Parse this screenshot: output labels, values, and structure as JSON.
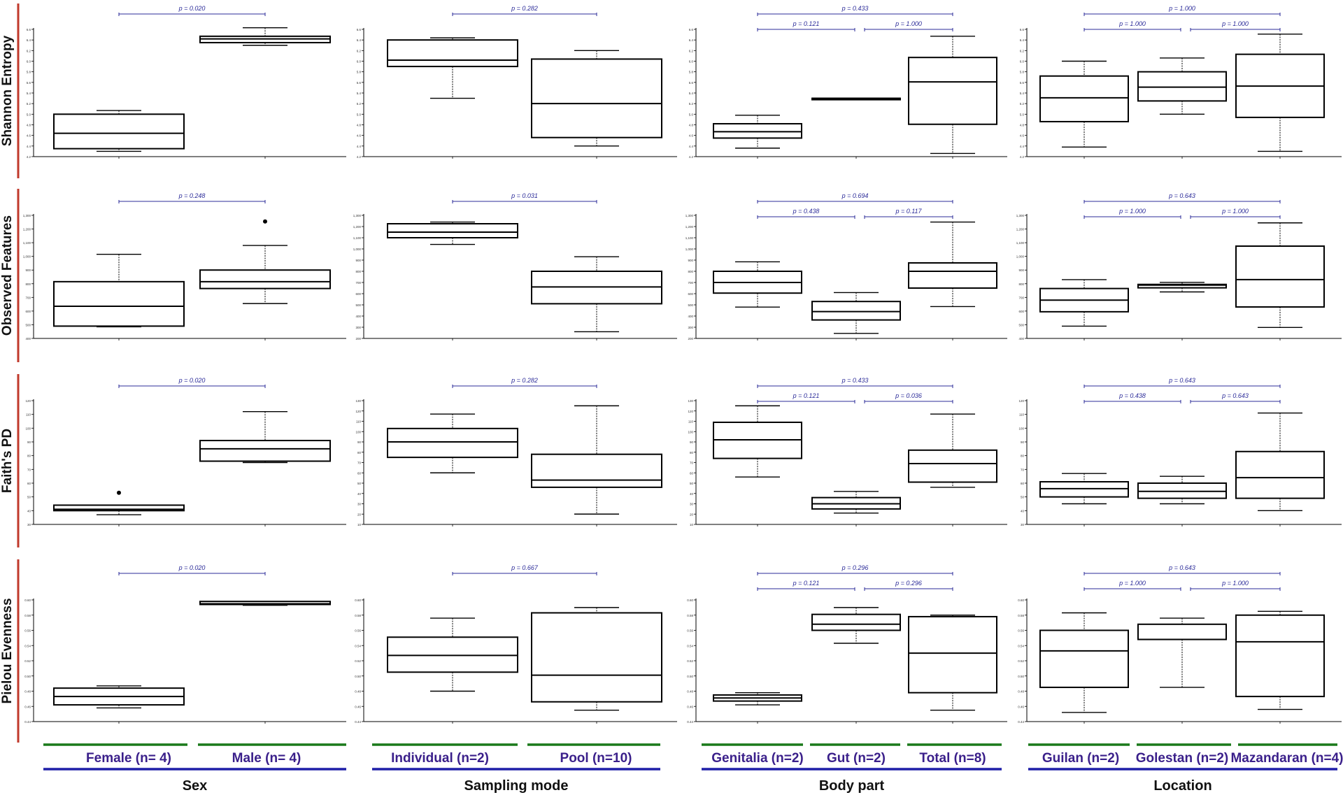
{
  "colors": {
    "row_bar": "#c0392b",
    "group_underline": "#1a7a1a",
    "factor_underline": "#1f1fa8",
    "group_label": "#3a1f8a",
    "pvalue": "#2b2b99",
    "box": "#000000"
  },
  "row_labels": [
    "Shannon Entropy",
    "Observed Features",
    "Faith's PD",
    "Pielou Evenness"
  ],
  "factors": [
    {
      "label": "Sex",
      "groups": [
        "Female (n= 4)",
        "Male (n= 4)"
      ]
    },
    {
      "label": "Sampling mode",
      "groups": [
        "Individual (n=2)",
        "Pool (n=10)"
      ]
    },
    {
      "label": "Body part",
      "groups": [
        "Genitalia (n=2)",
        "Gut (n=2)",
        "Total (n=8)"
      ]
    },
    {
      "label": "Location",
      "groups": [
        "Guilan (n=2)",
        "Golestan (n=2)",
        "Mazandaran (n=4)"
      ]
    }
  ],
  "chart_data": [
    {
      "type": "box",
      "metric": "Shannon Entropy",
      "factor": "Sex",
      "ylim": [
        4.2,
        6.6
      ],
      "yticks": [
        "4.2",
        "4.4",
        "4.6",
        "4.8",
        "5.0",
        "5.2",
        "5.4",
        "5.6",
        "5.8",
        "6.0",
        "6.2",
        "6.4",
        "6.6"
      ],
      "categories": [
        "Female (n= 4)",
        "Male (n= 4)"
      ],
      "boxes": [
        {
          "min": 4.3,
          "q1": 4.35,
          "median": 4.64,
          "q3": 5.0,
          "max": 5.07
        },
        {
          "min": 6.3,
          "q1": 6.35,
          "median": 6.42,
          "q3": 6.47,
          "max": 6.63
        }
      ],
      "comparisons": [
        {
          "a": 0,
          "b": 1,
          "p": "p = 0.020",
          "level": 0
        }
      ]
    },
    {
      "type": "box",
      "metric": "Shannon Entropy",
      "factor": "Sampling mode",
      "ylim": [
        4.2,
        6.6
      ],
      "yticks": [
        "4.2",
        "4.4",
        "4.6",
        "4.8",
        "5.0",
        "5.2",
        "5.4",
        "5.6",
        "5.8",
        "6.0",
        "6.2",
        "6.4",
        "6.6"
      ],
      "categories": [
        "Individual (n=2)",
        "Pool (n=10)"
      ],
      "boxes": [
        {
          "min": 5.3,
          "q1": 5.9,
          "median": 6.02,
          "q3": 6.4,
          "max": 6.44
        },
        {
          "min": 4.4,
          "q1": 4.56,
          "median": 5.2,
          "q3": 6.04,
          "max": 6.2
        }
      ],
      "comparisons": [
        {
          "a": 0,
          "b": 1,
          "p": "p = 0.282",
          "level": 0
        }
      ]
    },
    {
      "type": "box",
      "metric": "Shannon Entropy",
      "factor": "Body part",
      "ylim": [
        4.2,
        6.6
      ],
      "yticks": [
        "4.2",
        "4.4",
        "4.6",
        "4.8",
        "5.0",
        "5.2",
        "5.4",
        "5.6",
        "5.8",
        "6.0",
        "6.2",
        "6.4",
        "6.6"
      ],
      "categories": [
        "Genitalia (n=2)",
        "Gut (n=2)",
        "Total (n=8)"
      ],
      "boxes": [
        {
          "min": 4.36,
          "q1": 4.55,
          "median": 4.67,
          "q3": 4.82,
          "max": 4.98
        },
        {
          "min": 5.3,
          "q1": 5.3,
          "median": 5.3,
          "q3": 5.3,
          "max": 5.3
        },
        {
          "min": 4.26,
          "q1": 4.81,
          "median": 5.61,
          "q3": 6.07,
          "max": 6.47
        }
      ],
      "comparisons": [
        {
          "a": 0,
          "b": 1,
          "p": "p = 0.121",
          "level": 0
        },
        {
          "a": 1,
          "b": 2,
          "p": "p = 1.000",
          "level": 0
        },
        {
          "a": 0,
          "b": 2,
          "p": "p = 0.433",
          "level": 1
        }
      ]
    },
    {
      "type": "box",
      "metric": "Shannon Entropy",
      "factor": "Location",
      "ylim": [
        4.2,
        6.6
      ],
      "yticks": [
        "4.2",
        "4.4",
        "4.6",
        "4.8",
        "5.0",
        "5.2",
        "5.4",
        "5.6",
        "5.8",
        "6.0",
        "6.2",
        "6.4",
        "6.6"
      ],
      "categories": [
        "Guilan (n=2)",
        "Golestan (n=2)",
        "Mazandaran (n=4)"
      ],
      "boxes": [
        {
          "min": 4.38,
          "q1": 4.86,
          "median": 5.31,
          "q3": 5.72,
          "max": 6.0
        },
        {
          "min": 5.0,
          "q1": 5.25,
          "median": 5.51,
          "q3": 5.8,
          "max": 6.06
        },
        {
          "min": 4.3,
          "q1": 4.94,
          "median": 5.53,
          "q3": 6.13,
          "max": 6.51
        }
      ],
      "comparisons": [
        {
          "a": 0,
          "b": 1,
          "p": "p = 1.000",
          "level": 0
        },
        {
          "a": 1,
          "b": 2,
          "p": "p = 1.000",
          "level": 0
        },
        {
          "a": 0,
          "b": 2,
          "p": "p = 1.000",
          "level": 1
        }
      ]
    },
    {
      "type": "box",
      "metric": "Observed Features",
      "factor": "Sex",
      "ylim": [
        400,
        1300
      ],
      "yticks": [
        "400",
        "500",
        "600",
        "700",
        "800",
        "900",
        "1,000",
        "1,100",
        "1,200",
        "1,300"
      ],
      "categories": [
        "Female (n= 4)",
        "Male (n= 4)"
      ],
      "boxes": [
        {
          "min": 485,
          "q1": 490,
          "median": 635,
          "q3": 815,
          "max": 1015
        },
        {
          "min": 655,
          "q1": 765,
          "median": 815,
          "q3": 900,
          "max": 1080,
          "outliers": [
            1255
          ]
        }
      ],
      "comparisons": [
        {
          "a": 0,
          "b": 1,
          "p": "p = 0.248",
          "level": 0
        }
      ]
    },
    {
      "type": "box",
      "metric": "Observed Features",
      "factor": "Sampling mode",
      "ylim": [
        200,
        1300
      ],
      "yticks": [
        "200",
        "300",
        "400",
        "500",
        "600",
        "700",
        "800",
        "900",
        "1,000",
        "1,100",
        "1,200",
        "1,300"
      ],
      "categories": [
        "Individual (n=2)",
        "Pool (n=10)"
      ],
      "boxes": [
        {
          "min": 1040,
          "q1": 1100,
          "median": 1150,
          "q3": 1225,
          "max": 1240
        },
        {
          "min": 260,
          "q1": 510,
          "median": 660,
          "q3": 800,
          "max": 930
        }
      ],
      "comparisons": [
        {
          "a": 0,
          "b": 1,
          "p": "p = 0.031",
          "level": 0
        }
      ]
    },
    {
      "type": "box",
      "metric": "Observed Features",
      "factor": "Body part",
      "ylim": [
        200,
        1300
      ],
      "yticks": [
        "200",
        "300",
        "400",
        "500",
        "600",
        "700",
        "800",
        "900",
        "1,000",
        "1,100",
        "1,200",
        "1,300"
      ],
      "categories": [
        "Genitalia (n=2)",
        "Gut (n=2)",
        "Total (n=8)"
      ],
      "boxes": [
        {
          "min": 480,
          "q1": 605,
          "median": 700,
          "q3": 800,
          "max": 885
        },
        {
          "min": 245,
          "q1": 365,
          "median": 440,
          "q3": 530,
          "max": 610
        },
        {
          "min": 485,
          "q1": 650,
          "median": 800,
          "q3": 875,
          "max": 1240
        }
      ],
      "comparisons": [
        {
          "a": 0,
          "b": 1,
          "p": "p = 0.438",
          "level": 0
        },
        {
          "a": 1,
          "b": 2,
          "p": "p = 0.117",
          "level": 0
        },
        {
          "a": 0,
          "b": 2,
          "p": "p = 0.694",
          "level": 1
        }
      ]
    },
    {
      "type": "box",
      "metric": "Observed Features",
      "factor": "Location",
      "ylim": [
        400,
        1300
      ],
      "yticks": [
        "400",
        "500",
        "600",
        "700",
        "800",
        "900",
        "1,000",
        "1,100",
        "1,200",
        "1,300"
      ],
      "categories": [
        "Guilan (n=2)",
        "Golestan (n=2)",
        "Mazandaran (n=4)"
      ],
      "boxes": [
        {
          "min": 490,
          "q1": 595,
          "median": 680,
          "q3": 765,
          "max": 830
        },
        {
          "min": 740,
          "q1": 770,
          "median": 790,
          "q3": 795,
          "max": 810
        },
        {
          "min": 480,
          "q1": 630,
          "median": 830,
          "q3": 1075,
          "max": 1245
        }
      ],
      "comparisons": [
        {
          "a": 0,
          "b": 1,
          "p": "p = 1.000",
          "level": 0
        },
        {
          "a": 1,
          "b": 2,
          "p": "p = 1.000",
          "level": 0
        },
        {
          "a": 0,
          "b": 2,
          "p": "p = 0.643",
          "level": 1
        }
      ]
    },
    {
      "type": "box",
      "metric": "Faith's PD",
      "factor": "Sex",
      "ylim": [
        30,
        120
      ],
      "yticks": [
        "30",
        "40",
        "50",
        "60",
        "70",
        "80",
        "90",
        "100",
        "110",
        "120"
      ],
      "categories": [
        "Female (n= 4)",
        "Male (n= 4)"
      ],
      "boxes": [
        {
          "min": 37,
          "q1": 40,
          "median": 41,
          "q3": 44,
          "max": 44,
          "outliers": [
            53
          ]
        },
        {
          "min": 75,
          "q1": 76,
          "median": 85,
          "q3": 91,
          "max": 112
        }
      ],
      "comparisons": [
        {
          "a": 0,
          "b": 1,
          "p": "p = 0.020",
          "level": 0
        }
      ]
    },
    {
      "type": "box",
      "metric": "Faith's PD",
      "factor": "Sampling mode",
      "ylim": [
        10,
        130
      ],
      "yticks": [
        "10",
        "20",
        "30",
        "40",
        "50",
        "60",
        "70",
        "80",
        "90",
        "100",
        "110",
        "120",
        "130"
      ],
      "categories": [
        "Individual (n=2)",
        "Pool (n=10)"
      ],
      "boxes": [
        {
          "min": 60,
          "q1": 75,
          "median": 90,
          "q3": 103,
          "max": 117
        },
        {
          "min": 20,
          "q1": 46,
          "median": 53,
          "q3": 78,
          "max": 125
        }
      ],
      "comparisons": [
        {
          "a": 0,
          "b": 1,
          "p": "p = 0.282",
          "level": 0
        }
      ]
    },
    {
      "type": "box",
      "metric": "Faith's PD",
      "factor": "Body part",
      "ylim": [
        10,
        130
      ],
      "yticks": [
        "10",
        "20",
        "30",
        "40",
        "50",
        "60",
        "70",
        "80",
        "90",
        "100",
        "110",
        "120",
        "130"
      ],
      "categories": [
        "Genitalia (n=2)",
        "Gut (n=2)",
        "Total (n=8)"
      ],
      "boxes": [
        {
          "min": 56,
          "q1": 74,
          "median": 92,
          "q3": 109,
          "max": 125
        },
        {
          "min": 21,
          "q1": 25,
          "median": 30,
          "q3": 36,
          "max": 42
        },
        {
          "min": 46,
          "q1": 51,
          "median": 69,
          "q3": 82,
          "max": 117
        }
      ],
      "comparisons": [
        {
          "a": 0,
          "b": 1,
          "p": "p = 0.121",
          "level": 0
        },
        {
          "a": 1,
          "b": 2,
          "p": "p = 0.036",
          "level": 0
        },
        {
          "a": 0,
          "b": 2,
          "p": "p = 0.433",
          "level": 1
        }
      ]
    },
    {
      "type": "box",
      "metric": "Faith's PD",
      "factor": "Location",
      "ylim": [
        30,
        120
      ],
      "yticks": [
        "30",
        "40",
        "50",
        "60",
        "70",
        "80",
        "90",
        "100",
        "110",
        "120"
      ],
      "categories": [
        "Guilan (n=2)",
        "Golestan (n=2)",
        "Mazandaran (n=4)"
      ],
      "boxes": [
        {
          "min": 45,
          "q1": 50,
          "median": 56,
          "q3": 61,
          "max": 67
        },
        {
          "min": 45,
          "q1": 49,
          "median": 54,
          "q3": 60,
          "max": 65
        },
        {
          "min": 40,
          "q1": 49,
          "median": 64,
          "q3": 83,
          "max": 111
        }
      ],
      "comparisons": [
        {
          "a": 0,
          "b": 1,
          "p": "p = 0.438",
          "level": 0
        },
        {
          "a": 1,
          "b": 2,
          "p": "p = 0.643",
          "level": 0
        },
        {
          "a": 0,
          "b": 2,
          "p": "p = 0.643",
          "level": 1
        }
      ]
    },
    {
      "type": "box",
      "metric": "Pielou Evenness",
      "factor": "Sex",
      "ylim": [
        0.44,
        0.6
      ],
      "yticks": [
        "0.44",
        "0.46",
        "0.48",
        "0.50",
        "0.52",
        "0.54",
        "0.56",
        "0.58",
        "0.60"
      ],
      "categories": [
        "Female (n= 4)",
        "Male (n= 4)"
      ],
      "boxes": [
        {
          "min": 0.458,
          "q1": 0.462,
          "median": 0.473,
          "q3": 0.484,
          "max": 0.487
        },
        {
          "min": 0.593,
          "q1": 0.594,
          "median": 0.595,
          "q3": 0.598,
          "max": 0.598
        }
      ],
      "comparisons": [
        {
          "a": 0,
          "b": 1,
          "p": "p = 0.020",
          "level": 0
        }
      ]
    },
    {
      "type": "box",
      "metric": "Pielou Evenness",
      "factor": "Sampling mode",
      "ylim": [
        0.44,
        0.6
      ],
      "yticks": [
        "0.44",
        "0.46",
        "0.48",
        "0.50",
        "0.52",
        "0.54",
        "0.56",
        "0.58",
        "0.60"
      ],
      "categories": [
        "Individual (n=2)",
        "Pool (n=10)"
      ],
      "boxes": [
        {
          "min": 0.48,
          "q1": 0.505,
          "median": 0.527,
          "q3": 0.551,
          "max": 0.576
        },
        {
          "min": 0.455,
          "q1": 0.466,
          "median": 0.501,
          "q3": 0.583,
          "max": 0.59
        }
      ],
      "comparisons": [
        {
          "a": 0,
          "b": 1,
          "p": "p = 0.667",
          "level": 0
        }
      ]
    },
    {
      "type": "box",
      "metric": "Pielou Evenness",
      "factor": "Body part",
      "ylim": [
        0.44,
        0.6
      ],
      "yticks": [
        "0.44",
        "0.46",
        "0.48",
        "0.50",
        "0.52",
        "0.54",
        "0.56",
        "0.58",
        "0.60"
      ],
      "categories": [
        "Genitalia (n=2)",
        "Gut (n=2)",
        "Total (n=8)"
      ],
      "boxes": [
        {
          "min": 0.462,
          "q1": 0.467,
          "median": 0.471,
          "q3": 0.475,
          "max": 0.478
        },
        {
          "min": 0.543,
          "q1": 0.56,
          "median": 0.568,
          "q3": 0.581,
          "max": 0.59
        },
        {
          "min": 0.455,
          "q1": 0.478,
          "median": 0.53,
          "q3": 0.578,
          "max": 0.58
        }
      ],
      "comparisons": [
        {
          "a": 0,
          "b": 1,
          "p": "p = 0.121",
          "level": 0
        },
        {
          "a": 1,
          "b": 2,
          "p": "p = 0.296",
          "level": 0
        },
        {
          "a": 0,
          "b": 2,
          "p": "p = 0.296",
          "level": 1
        }
      ]
    },
    {
      "type": "box",
      "metric": "Pielou Evenness",
      "factor": "Location",
      "ylim": [
        0.44,
        0.6
      ],
      "yticks": [
        "0.44",
        "0.46",
        "0.48",
        "0.50",
        "0.52",
        "0.54",
        "0.56",
        "0.58",
        "0.60"
      ],
      "categories": [
        "Guilan (n=2)",
        "Golestan (n=2)",
        "Mazandaran (n=4)"
      ],
      "boxes": [
        {
          "min": 0.452,
          "q1": 0.485,
          "median": 0.533,
          "q3": 0.56,
          "max": 0.583
        },
        {
          "min": 0.485,
          "q1": 0.548,
          "median": 0.548,
          "q3": 0.568,
          "max": 0.576
        },
        {
          "min": 0.456,
          "q1": 0.473,
          "median": 0.545,
          "q3": 0.58,
          "max": 0.585
        }
      ],
      "comparisons": [
        {
          "a": 0,
          "b": 1,
          "p": "p = 1.000",
          "level": 0
        },
        {
          "a": 1,
          "b": 2,
          "p": "p = 1.000",
          "level": 0
        },
        {
          "a": 0,
          "b": 2,
          "p": "p = 0.643",
          "level": 1
        }
      ]
    }
  ]
}
